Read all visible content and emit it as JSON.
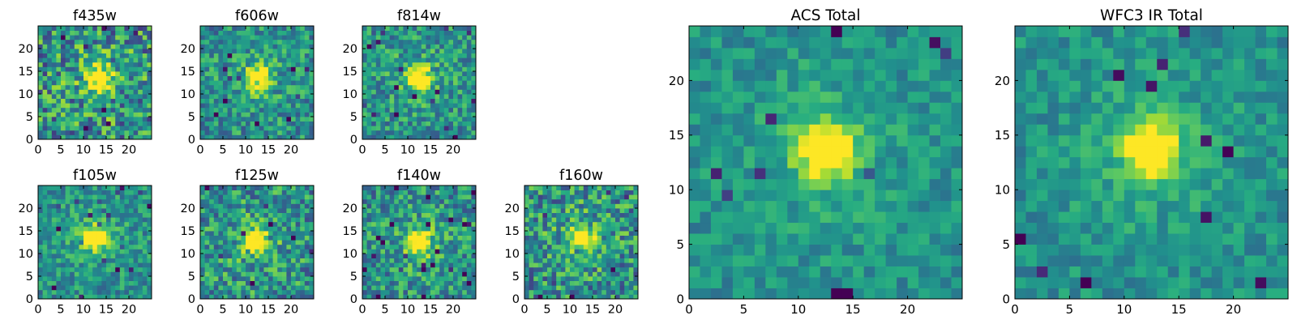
{
  "chart_data": [
    {
      "type": "heatmap",
      "title": "f435w",
      "colormap": "viridis",
      "xlim": [
        0,
        25
      ],
      "ylim": [
        0,
        25
      ],
      "xticks": [
        "0",
        "5",
        "10",
        "15",
        "20"
      ],
      "yticks": [
        "0",
        "5",
        "10",
        "15",
        "20"
      ],
      "source_center": [
        13,
        13
      ],
      "noise": 0.34,
      "seed": 11
    },
    {
      "type": "heatmap",
      "title": "f606w",
      "colormap": "viridis",
      "xlim": [
        0,
        25
      ],
      "ylim": [
        0,
        25
      ],
      "xticks": [
        "0",
        "5",
        "10",
        "15",
        "20"
      ],
      "yticks": [
        "0",
        "5",
        "10",
        "15",
        "20"
      ],
      "source_center": [
        12,
        13
      ],
      "noise": 0.24,
      "seed": 23
    },
    {
      "type": "heatmap",
      "title": "f814w",
      "colormap": "viridis",
      "xlim": [
        0,
        25
      ],
      "ylim": [
        0,
        25
      ],
      "xticks": [
        "0",
        "5",
        "10",
        "15",
        "20"
      ],
      "yticks": [
        "0",
        "5",
        "10",
        "15",
        "20"
      ],
      "source_center": [
        12,
        13
      ],
      "noise": 0.24,
      "seed": 37
    },
    {
      "type": "heatmap",
      "title": "f105w",
      "colormap": "viridis",
      "xlim": [
        0,
        25
      ],
      "ylim": [
        0,
        25
      ],
      "xticks": [
        "0",
        "5",
        "10",
        "15",
        "20"
      ],
      "yticks": [
        "0",
        "5",
        "10",
        "15",
        "20"
      ],
      "source_center": [
        12,
        13
      ],
      "noise": 0.2,
      "seed": 41
    },
    {
      "type": "heatmap",
      "title": "f125w",
      "colormap": "viridis",
      "xlim": [
        0,
        25
      ],
      "ylim": [
        0,
        25
      ],
      "xticks": [
        "0",
        "5",
        "10",
        "15",
        "20"
      ],
      "yticks": [
        "0",
        "5",
        "10",
        "15",
        "20"
      ],
      "source_center": [
        12,
        12
      ],
      "noise": 0.28,
      "seed": 53
    },
    {
      "type": "heatmap",
      "title": "f140w",
      "colormap": "viridis",
      "xlim": [
        0,
        25
      ],
      "ylim": [
        0,
        25
      ],
      "xticks": [
        "0",
        "5",
        "10",
        "15",
        "20"
      ],
      "yticks": [
        "0",
        "5",
        "10",
        "15",
        "20"
      ],
      "source_center": [
        12,
        12
      ],
      "noise": 0.26,
      "seed": 67
    },
    {
      "type": "heatmap",
      "title": "f160w",
      "colormap": "viridis",
      "xlim": [
        0,
        25
      ],
      "ylim": [
        0,
        25
      ],
      "xticks": [
        "0",
        "5",
        "10",
        "15",
        "20"
      ],
      "yticks": [
        "0",
        "5",
        "10",
        "15",
        "20"
      ],
      "source_center": [
        12,
        13
      ],
      "noise": 0.3,
      "seed": 79
    },
    {
      "type": "heatmap",
      "title": "ACS Total",
      "colormap": "viridis",
      "xlim": [
        0,
        25
      ],
      "ylim": [
        0,
        25
      ],
      "xticks": [
        "0",
        "5",
        "10",
        "15",
        "20"
      ],
      "yticks": [
        "0",
        "5",
        "10",
        "15",
        "20"
      ],
      "source_center": [
        12,
        13
      ],
      "noise": 0.14,
      "seed": 97
    },
    {
      "type": "heatmap",
      "title": "WFC3 IR Total",
      "colormap": "viridis",
      "xlim": [
        0,
        25
      ],
      "ylim": [
        0,
        25
      ],
      "xticks": [
        "0",
        "5",
        "10",
        "15",
        "20"
      ],
      "yticks": [
        "0",
        "5",
        "10",
        "15",
        "20"
      ],
      "source_center": [
        12,
        13
      ],
      "noise": 0.14,
      "seed": 113
    }
  ]
}
